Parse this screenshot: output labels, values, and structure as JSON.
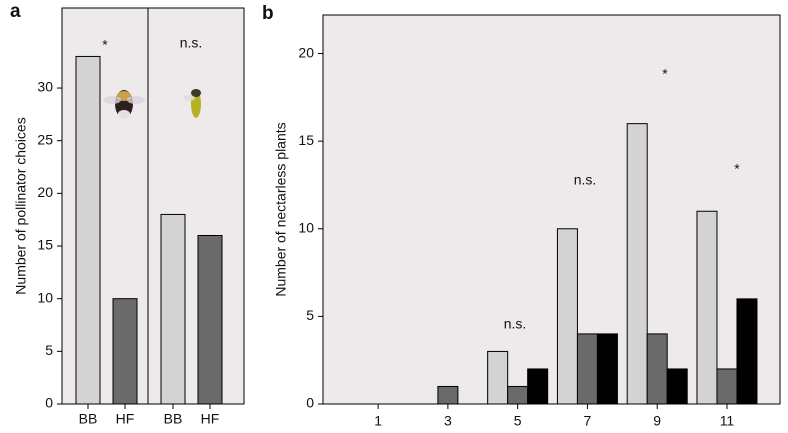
{
  "chart_data": [
    {
      "type": "bar",
      "label": "a",
      "y_label": "Number of pollinator choices",
      "categories": [
        "BB",
        "HF",
        "BB",
        "HF"
      ],
      "values": [
        33,
        10,
        18,
        16
      ],
      "colors": [
        "#d3d3d3",
        "#6a6a6a",
        "#d3d3d3",
        "#6a6a6a"
      ],
      "annotations": [
        "*",
        "n.s."
      ],
      "ylim": [
        0,
        37.6
      ],
      "yticks": [
        0,
        5,
        10,
        15,
        20,
        25,
        30
      ]
    },
    {
      "type": "grouped-bar",
      "label": "b",
      "y_label": "Number of nectarless plants",
      "x": [
        1,
        3,
        5,
        7,
        9,
        11
      ],
      "series": [
        {
          "color": "#d3d3d3",
          "values": [
            0,
            0,
            3,
            10,
            16,
            11
          ]
        },
        {
          "color": "#6a6a6a",
          "values": [
            0,
            1,
            1,
            4,
            4,
            2
          ]
        },
        {
          "color": "#000000",
          "values": [
            0,
            0,
            2,
            4,
            2,
            6
          ]
        }
      ],
      "annotations": [
        "n.s.",
        "n.s.",
        "*",
        "*"
      ],
      "xlim": [
        -0.58,
        12.52
      ],
      "xticks": [
        1,
        3,
        5,
        7,
        9,
        11
      ],
      "ylim": [
        0,
        22.2
      ],
      "yticks": [
        0,
        5,
        10,
        15,
        20
      ]
    }
  ]
}
